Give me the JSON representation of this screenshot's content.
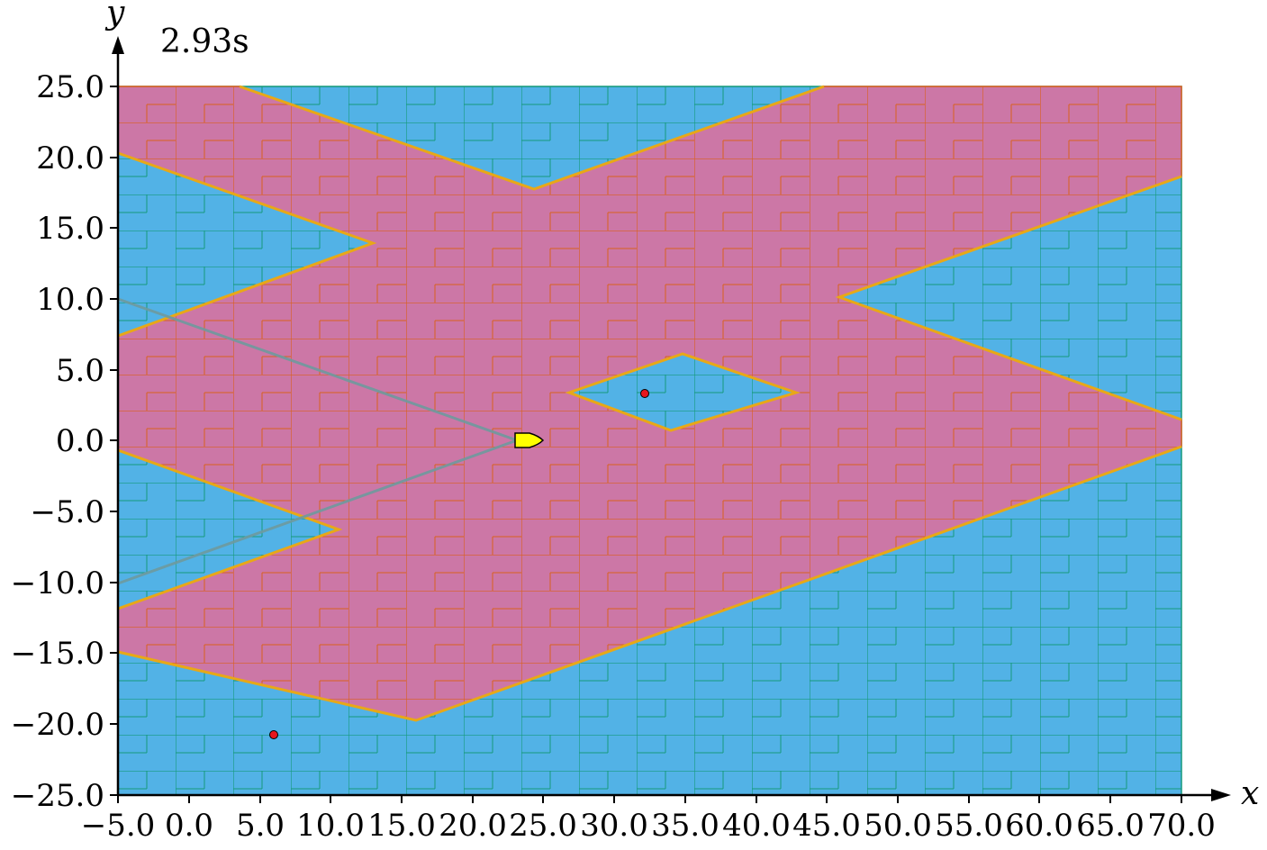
{
  "time_label": "2.93s",
  "axes": {
    "x_name": "x",
    "y_name": "y",
    "x_range": [
      -5,
      70
    ],
    "y_range": [
      -25,
      25
    ],
    "x_ticks": [
      "−5.0",
      "0.0",
      "5.0",
      "10.0",
      "15.0",
      "20.0",
      "25.0",
      "30.0",
      "35.0",
      "40.0",
      "45.0",
      "50.0",
      "55.0",
      "60.0",
      "65.0",
      "70.0"
    ],
    "y_ticks": [
      "25.0",
      "20.0",
      "15.0",
      "10.0",
      "5.0",
      "0.0",
      "−5.0",
      "−10.0",
      "−15.0",
      "−20.0",
      "−25.0"
    ]
  },
  "colors": {
    "free_region": "#52b2e6",
    "occupied_region": "#cc77a6",
    "free_edge": "#159a7c",
    "occupied_edge": "#d9601e",
    "boundary": "#e8a817",
    "vehicle": "#ffff00",
    "target": "#e8161d",
    "sensor_line": "#6e9a9e"
  },
  "vehicle": {
    "x": 23.5,
    "y": 0.0
  },
  "targets": [
    {
      "x": 32.2,
      "y": 3.3
    },
    {
      "x": 6.0,
      "y": -20.8
    }
  ]
}
